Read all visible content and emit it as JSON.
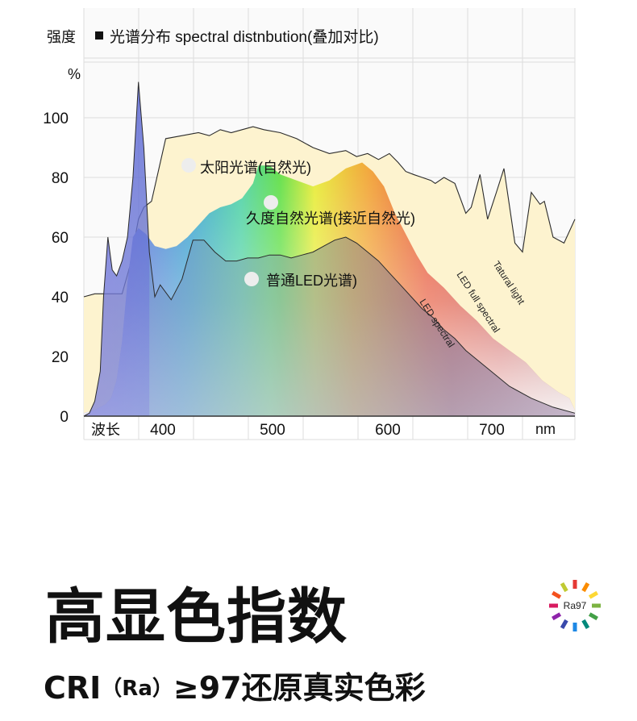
{
  "chart_data": {
    "type": "area",
    "title_prefix": "强度",
    "title": "光谱分布  spectral distnbution(叠加对比)",
    "ylabel": "%",
    "xlabel_left": "波长",
    "xlabel_unit": "nm",
    "xlim": [
      350,
      800
    ],
    "ylim": [
      0,
      115
    ],
    "y_ticks": [
      0,
      20,
      40,
      60,
      80,
      100
    ],
    "x_ticks": [
      400,
      500,
      600,
      700
    ],
    "series": [
      {
        "name": "太阳光谱(自然光)",
        "curve_label": "Tatural light",
        "color": "#fdf3cf",
        "x": [
          350,
          360,
          375,
          385,
          392,
          400,
          405,
          412,
          425,
          440,
          455,
          465,
          475,
          485,
          495,
          505,
          515,
          530,
          545,
          560,
          575,
          590,
          600,
          610,
          620,
          630,
          638,
          645,
          652,
          660,
          668,
          672,
          680,
          690,
          700,
          705,
          713,
          720,
          728,
          735,
          745,
          752,
          760,
          768,
          772,
          780,
          790,
          800
        ],
        "y": [
          40,
          41,
          41,
          41,
          50,
          66,
          70,
          72,
          93,
          94,
          95,
          94,
          96,
          95,
          96,
          97,
          96,
          95,
          93,
          90,
          88,
          89,
          87,
          88,
          86,
          88,
          85,
          82,
          81,
          80,
          79,
          78,
          80,
          78,
          68,
          70,
          81,
          66,
          75,
          83,
          58,
          55,
          75,
          71,
          72,
          60,
          58,
          66
        ]
      },
      {
        "name": "久度自然光谱(接近自然光)",
        "curve_label": "LED full spectral",
        "color": "#e26a55",
        "x": [
          350,
          360,
          370,
          375,
          380,
          385,
          390,
          395,
          400,
          407,
          415,
          425,
          435,
          445,
          455,
          465,
          475,
          485,
          495,
          505,
          510,
          520,
          530,
          545,
          560,
          575,
          590,
          605,
          615,
          625,
          635,
          645,
          655,
          665,
          680,
          695,
          710,
          725,
          740,
          755,
          770,
          785,
          795,
          800
        ],
        "y": [
          1,
          2,
          4,
          6,
          12,
          25,
          45,
          60,
          63,
          61,
          57,
          56,
          57,
          60,
          64,
          68,
          70,
          71,
          73,
          78,
          84,
          84,
          81,
          79,
          77,
          79,
          83,
          85,
          82,
          77,
          68,
          61,
          54,
          48,
          43,
          37,
          32,
          26,
          22,
          18,
          12,
          8,
          6,
          2
        ]
      },
      {
        "name": "普通LED光谱)",
        "curve_label": "LED spectral",
        "color": "#8c7fa6",
        "x": [
          350,
          355,
          360,
          365,
          368,
          372,
          376,
          380,
          385,
          390,
          395,
          400,
          405,
          410,
          415,
          420,
          430,
          440,
          450,
          460,
          470,
          480,
          490,
          500,
          510,
          520,
          530,
          540,
          550,
          560,
          570,
          580,
          590,
          600,
          610,
          620,
          630,
          640,
          650,
          660,
          670,
          680,
          690,
          700,
          720,
          740,
          760,
          780,
          800
        ],
        "y": [
          0,
          1,
          5,
          15,
          40,
          60,
          49,
          47,
          52,
          60,
          80,
          112,
          90,
          55,
          40,
          44,
          39,
          46,
          59,
          59,
          55,
          52,
          52,
          53,
          53,
          54,
          54,
          53,
          54,
          55,
          57,
          59,
          60,
          58,
          55,
          52,
          48,
          44,
          40,
          36,
          33,
          29,
          26,
          22,
          16,
          10,
          6,
          3,
          1
        ]
      }
    ],
    "series_markers": [
      "太阳光谱(自然光)",
      "久度自然光谱(接近自然光)",
      "普通LED光谱)"
    ]
  },
  "headline": "高显色指数",
  "subline_prefix": "CRI",
  "subline_ra": "（Ra）",
  "subline_rest": "≥97还原真实色彩",
  "badge": {
    "label": "Ra97",
    "colors": [
      "#e53935",
      "#fb8c00",
      "#fdd835",
      "#7cb342",
      "#43a047",
      "#00897b",
      "#1e88e5",
      "#3949ab",
      "#8e24aa",
      "#d81b60",
      "#f4511e",
      "#c0ca33"
    ]
  },
  "legend_marker_color": "#ededed",
  "grid_color": "#dcdcdc"
}
